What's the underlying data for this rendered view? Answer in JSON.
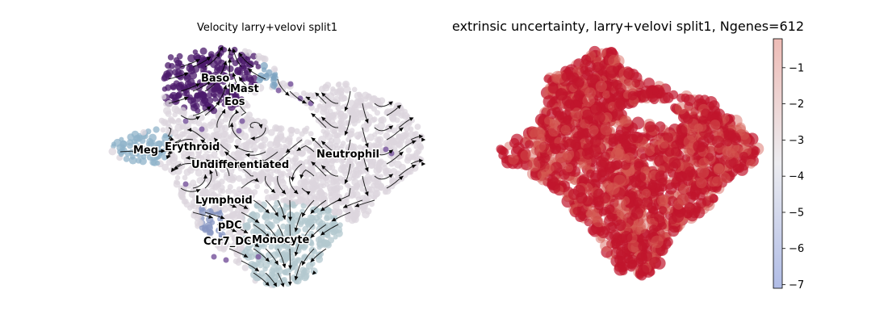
{
  "chart_data": [
    {
      "type": "scatter",
      "subtype": "umap-embedding-with-velocity-streamlines",
      "title": "Velocity larry+velovi split1",
      "axes_visible": false,
      "legend": "on data",
      "annotations": [
        "Baso",
        "Mast",
        "Eos",
        "Meg",
        "Erythroid",
        "Undifferentiated",
        "Neutrophil",
        "Lymphoid",
        "pDC",
        "Ccr7_DC",
        "Monocyte"
      ],
      "colors": {
        "Baso": "#4b1a6b",
        "Mast": "#4b1a6b",
        "Eos": "#5a2a7c",
        "Meg": "#8fb3c9",
        "Erythroid": "#aac4d2",
        "Undifferentiated": "#dcd6dd",
        "Neutrophil": "#d4d2da",
        "Lymphoid": "#d9d3dc",
        "pDC": "#7b89b8",
        "Ccr7_DC": "#6c4a8e",
        "Monocyte": "#b3c8cf",
        "streamline": "#000000"
      }
    },
    {
      "type": "scatter",
      "subtype": "umap-embedding-colored-by-value",
      "title": "extrinsic uncertainty, larry+velovi split1, Ngenes=612",
      "axes_visible": false,
      "colorbar": {
        "cmap": "coolwarm",
        "range": [
          -7.1,
          -0.2
        ],
        "ticks": [
          "−1",
          "−2",
          "−3",
          "−4",
          "−5",
          "−6",
          "−7"
        ],
        "colors": {
          "low": "#3b4cc0",
          "mid": "#dddddd",
          "high": "#b40426"
        }
      },
      "point_color": "#c0162c",
      "point_value_approx": -0.2
    }
  ]
}
